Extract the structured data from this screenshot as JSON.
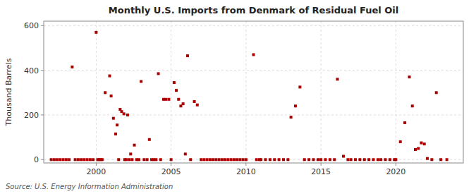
{
  "chart_data": {
    "type": "scatter",
    "title": "Monthly U.S. Imports from Denmark of Residual Fuel Oil",
    "ylabel": "Thousand Barrels",
    "source": "Source: U.S. Energy Information Administration",
    "color": "#aa0000",
    "marker": "square",
    "grid": true,
    "xlim": [
      1996.5,
      2024.5
    ],
    "xticks": [
      2000,
      2005,
      2010,
      2015,
      2020
    ],
    "ylim": [
      -15,
      620
    ],
    "yticks": [
      0,
      200,
      400,
      600
    ],
    "x": [
      1997.0,
      1997.2,
      1997.4,
      1997.6,
      1997.8,
      1998.0,
      1998.2,
      1998.4,
      1998.6,
      1998.8,
      1999.0,
      1999.2,
      1999.4,
      1999.6,
      1999.8,
      2000.0,
      2000.1,
      2000.2,
      2000.3,
      2000.4,
      2000.6,
      2000.9,
      2001.0,
      2001.15,
      2001.3,
      2001.4,
      2001.5,
      2001.6,
      2001.7,
      2001.85,
      2001.9,
      2002.0,
      2002.1,
      2002.2,
      2002.3,
      2002.4,
      2002.55,
      2002.7,
      2002.85,
      2003.0,
      2003.2,
      2003.4,
      2003.55,
      2003.7,
      2003.85,
      2004.0,
      2004.15,
      2004.3,
      2004.5,
      2004.65,
      2004.85,
      2005.0,
      2005.2,
      2005.35,
      2005.5,
      2005.65,
      2005.8,
      2005.95,
      2006.1,
      2006.3,
      2006.55,
      2006.75,
      2007.0,
      2007.2,
      2007.4,
      2007.6,
      2007.8,
      2008.0,
      2008.2,
      2008.4,
      2008.6,
      2008.8,
      2009.0,
      2009.2,
      2009.4,
      2009.6,
      2009.8,
      2010.0,
      2010.5,
      2010.7,
      2010.9,
      2011.0,
      2011.3,
      2011.6,
      2011.9,
      2012.2,
      2012.5,
      2012.8,
      2013.0,
      2013.3,
      2013.6,
      2013.9,
      2014.2,
      2014.5,
      2014.8,
      2015.0,
      2015.3,
      2015.6,
      2015.9,
      2016.1,
      2016.5,
      2016.8,
      2017.0,
      2017.3,
      2017.6,
      2017.9,
      2018.2,
      2018.5,
      2018.8,
      2019.0,
      2019.3,
      2019.6,
      2019.9,
      2020.0,
      2020.3,
      2020.6,
      2020.9,
      2021.1,
      2021.3,
      2021.5,
      2021.7,
      2021.9,
      2022.1,
      2022.4,
      2022.7,
      2023.0,
      2023.4
    ],
    "values": [
      0,
      0,
      0,
      0,
      0,
      0,
      0,
      415,
      0,
      0,
      0,
      0,
      0,
      0,
      0,
      570,
      0,
      0,
      0,
      0,
      300,
      375,
      285,
      185,
      115,
      155,
      0,
      225,
      215,
      205,
      0,
      0,
      200,
      0,
      25,
      0,
      65,
      0,
      0,
      350,
      0,
      0,
      90,
      0,
      0,
      0,
      385,
      0,
      270,
      270,
      270,
      0,
      345,
      310,
      270,
      240,
      250,
      25,
      465,
      0,
      260,
      245,
      0,
      0,
      0,
      0,
      0,
      0,
      0,
      0,
      0,
      0,
      0,
      0,
      0,
      0,
      0,
      0,
      470,
      0,
      0,
      0,
      0,
      0,
      0,
      0,
      0,
      0,
      190,
      240,
      325,
      0,
      0,
      0,
      0,
      0,
      0,
      0,
      0,
      360,
      15,
      0,
      0,
      0,
      0,
      0,
      0,
      0,
      0,
      0,
      0,
      0,
      0,
      0,
      80,
      165,
      370,
      240,
      45,
      50,
      75,
      70,
      5,
      0,
      300,
      0,
      0
    ]
  }
}
